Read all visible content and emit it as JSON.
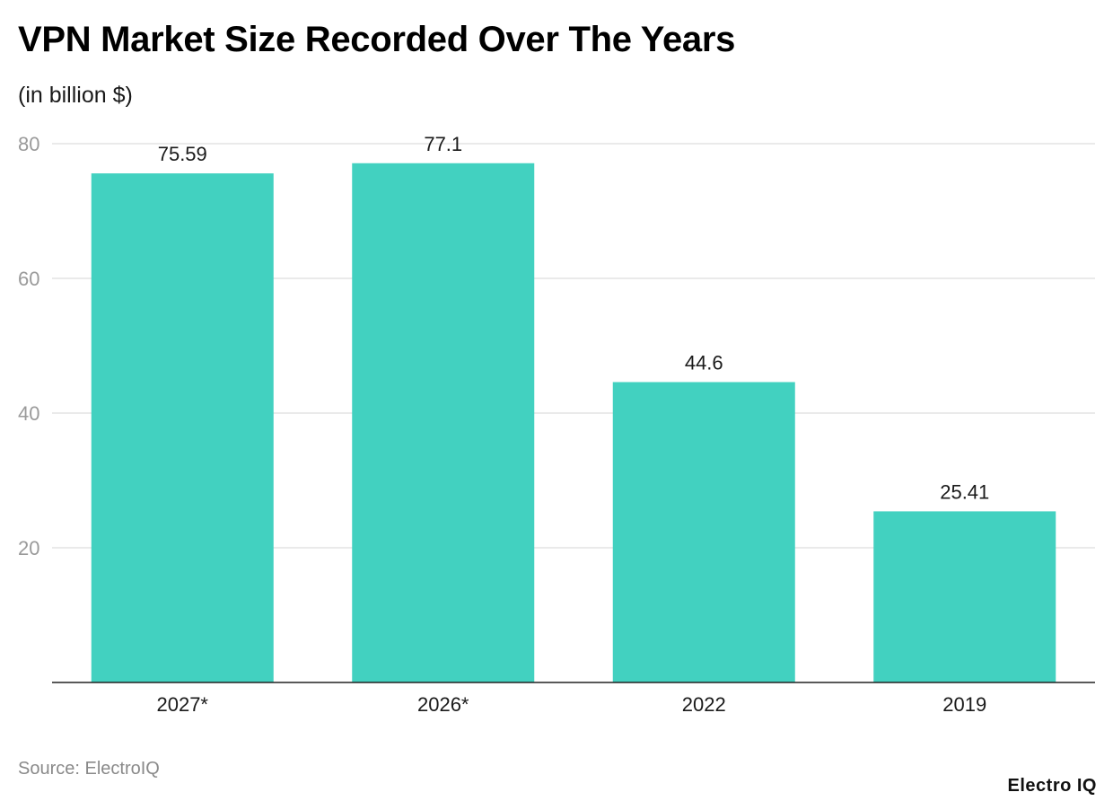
{
  "chart_data": {
    "type": "bar",
    "title": "VPN Market Size Recorded Over The Years",
    "subtitle": "(in billion $)",
    "categories": [
      "2027*",
      "2026*",
      "2022",
      "2019"
    ],
    "values": [
      75.59,
      77.1,
      44.6,
      25.41
    ],
    "value_labels": [
      "75.59",
      "77.1",
      "44.6",
      "25.41"
    ],
    "yticks": [
      20,
      40,
      60,
      80
    ],
    "ylim": [
      0,
      80
    ],
    "xlabel": "",
    "ylabel": "",
    "grid": true,
    "legend": "none",
    "bar_color": "#42d1c0"
  },
  "footer": {
    "source": "Source: ElectroIQ",
    "brand": "Electro IQ"
  }
}
